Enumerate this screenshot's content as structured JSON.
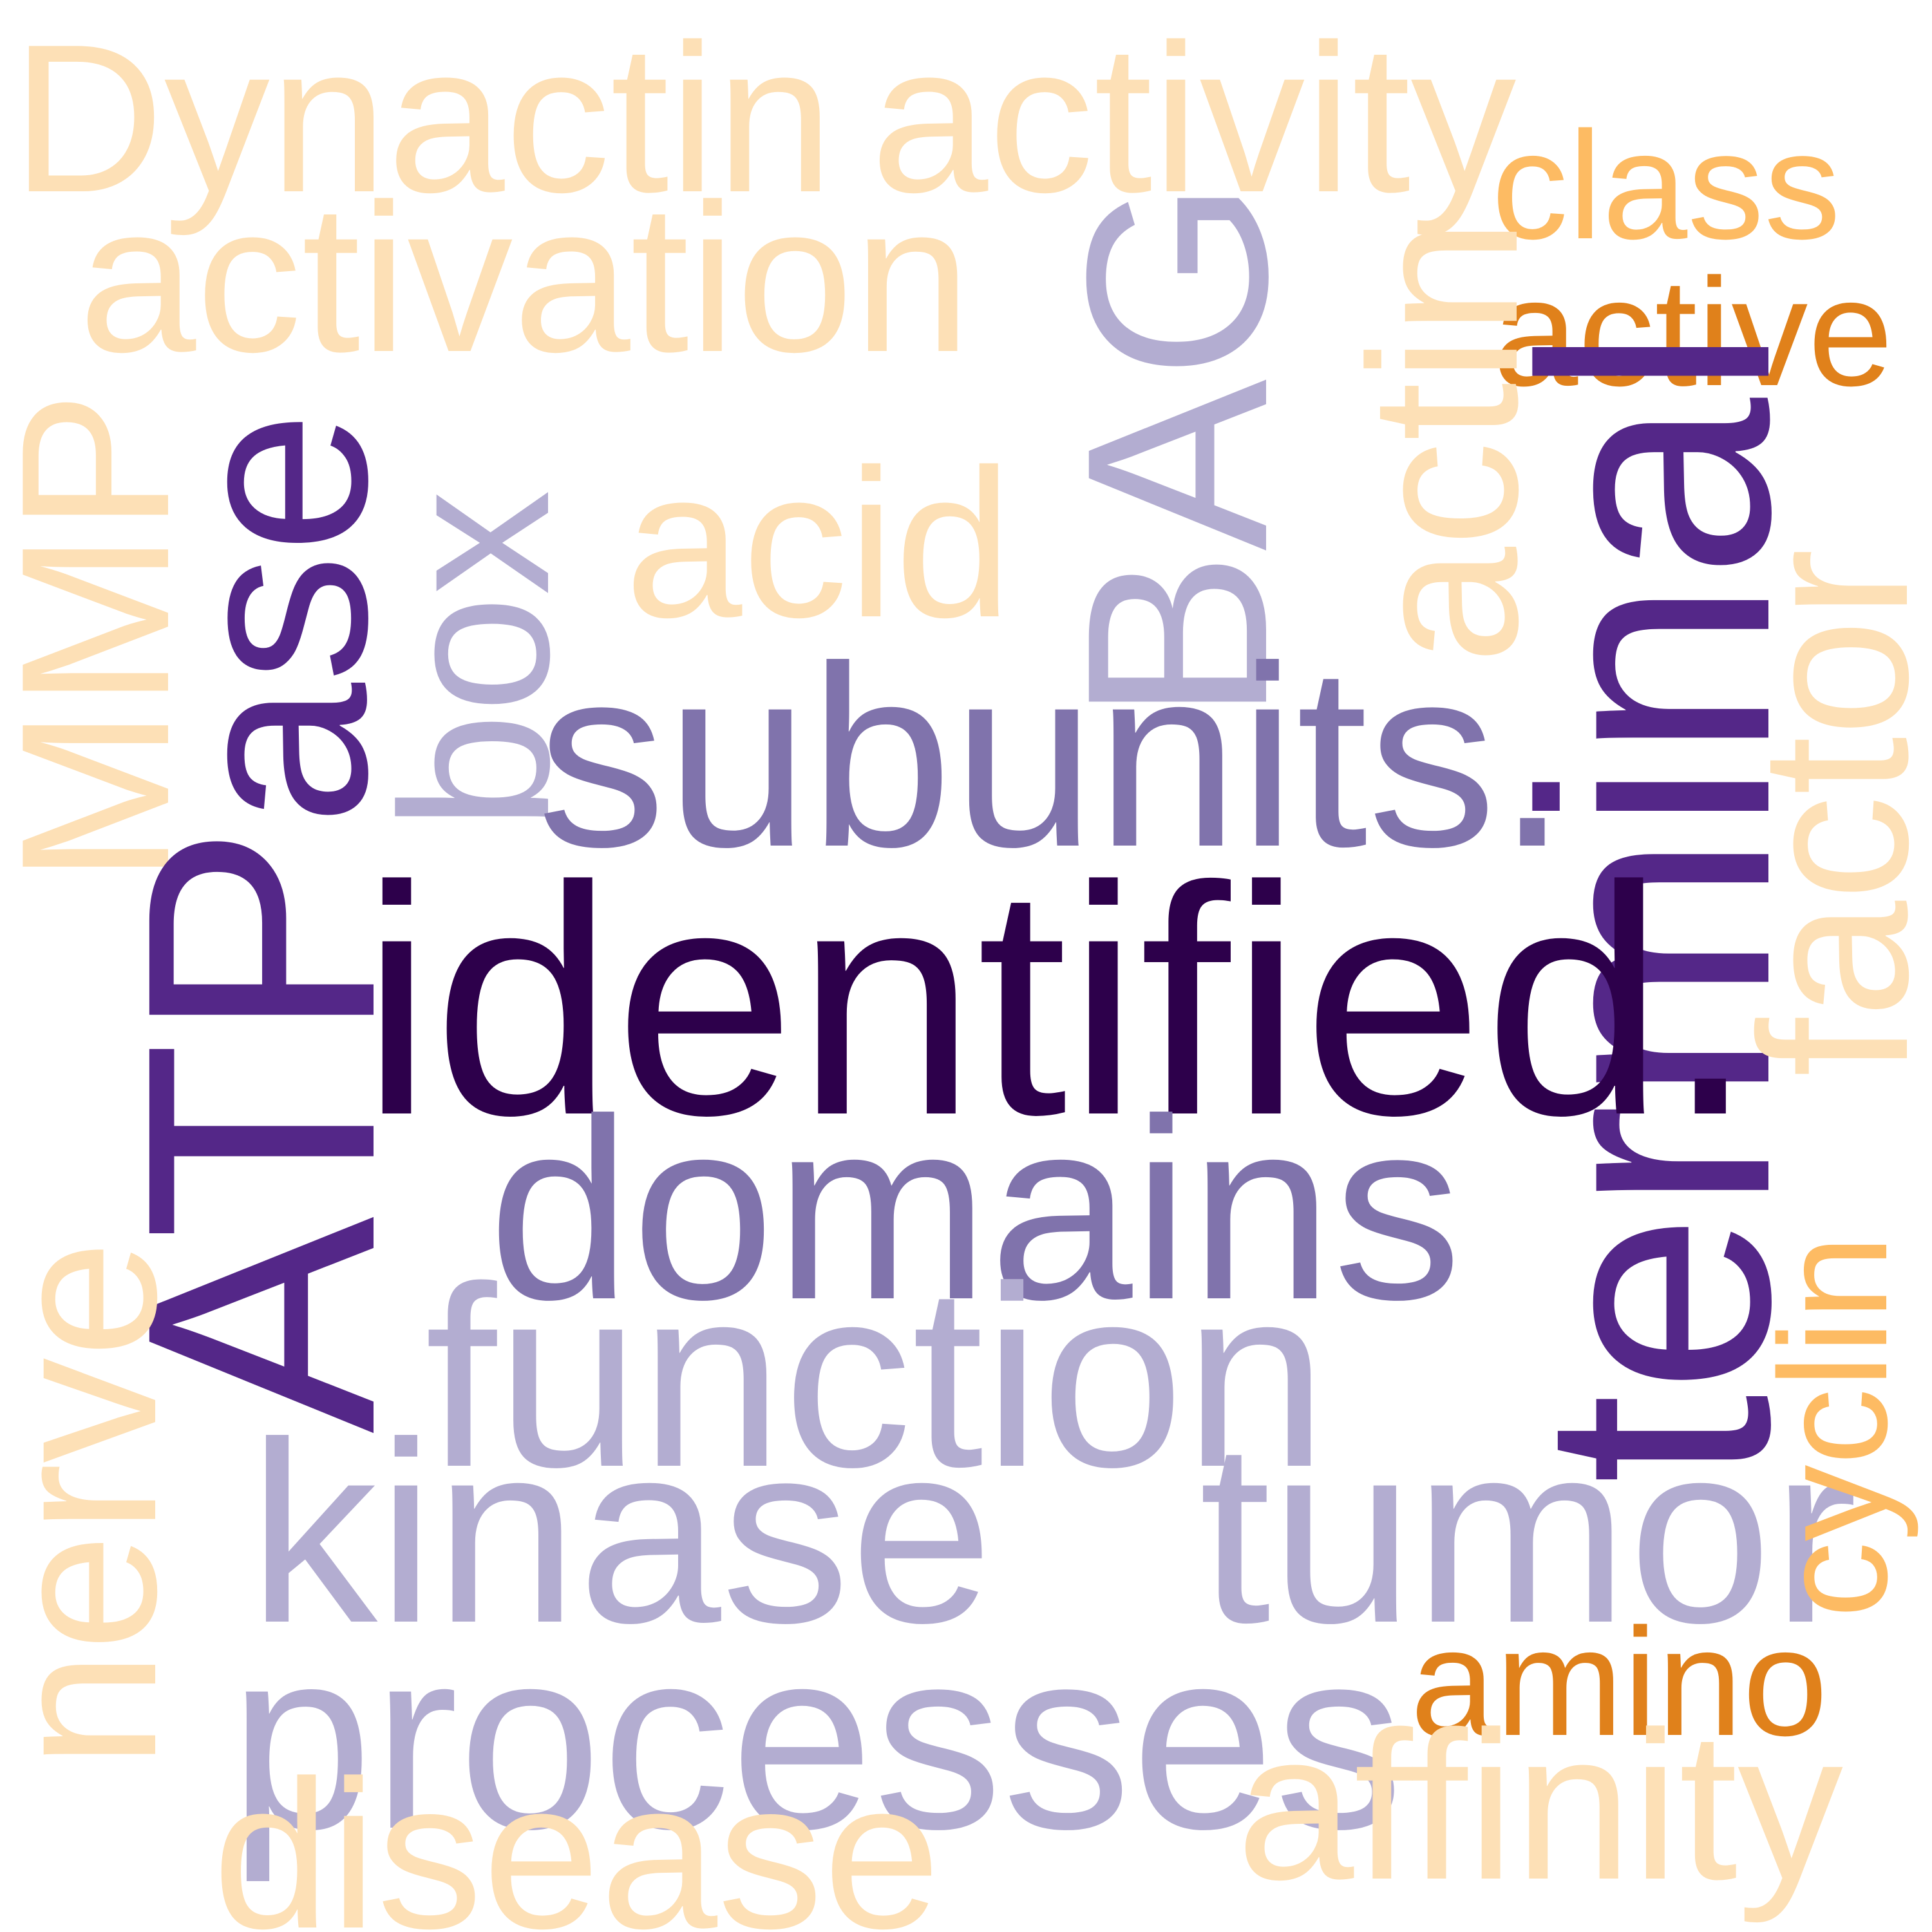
{
  "colors": {
    "light_peach": "#fde0b6",
    "orange": "#fdbb63",
    "dark_orange": "#e0811b",
    "lavender": "#b3add1",
    "slate_purple": "#8073ac",
    "purple": "#542788",
    "dark_purple": "#2d004b"
  },
  "words": {
    "dynactin": {
      "text": "Dynactin",
      "color": "#fde0b6"
    },
    "activity": {
      "text": "activity",
      "color": "#fde0b6"
    },
    "activation": {
      "text": "activation",
      "color": "#fde0b6"
    },
    "class": {
      "text": "class",
      "color": "#fdbb63"
    },
    "active": {
      "text": "active",
      "color": "#e0811b"
    },
    "acid": {
      "text": "acid",
      "color": "#fde0b6"
    },
    "mmp": {
      "text": "MMP",
      "color": "#fde0b6"
    },
    "ase": {
      "text": "ase",
      "color": "#542788"
    },
    "box": {
      "text": "box",
      "color": "#b3add1"
    },
    "bag": {
      "text": "BAG",
      "color": "#b3add1"
    },
    "actin": {
      "text": "actin",
      "color": "#fde0b6"
    },
    "subunits": {
      "text": "subunits.",
      "color": "#8073ac"
    },
    "terminal": {
      "text": "terminal",
      "color": "#542788"
    },
    "atp": {
      "text": "ATP",
      "color": "#542788"
    },
    "identified": {
      "text": "identified.",
      "color": "#2d004b"
    },
    "factor": {
      "text": "factor",
      "color": "#fde0b6"
    },
    "domains": {
      "text": "domains",
      "color": "#8073ac"
    },
    "function": {
      "text": "function",
      "color": "#b3add1"
    },
    "kinase": {
      "text": "kinase",
      "color": "#b3add1"
    },
    "tumor": {
      "text": "tumor",
      "color": "#b3add1"
    },
    "cyclin": {
      "text": "cyclin",
      "color": "#fdbb63"
    },
    "nerve": {
      "text": "nerve",
      "color": "#fde0b6"
    },
    "processes": {
      "text": "processes",
      "color": "#b3add1"
    },
    "amino": {
      "text": "amino",
      "color": "#e0811b"
    },
    "affinity": {
      "text": "affinity",
      "color": "#fde0b6"
    },
    "disease": {
      "text": "disease",
      "color": "#fde0b6"
    }
  }
}
